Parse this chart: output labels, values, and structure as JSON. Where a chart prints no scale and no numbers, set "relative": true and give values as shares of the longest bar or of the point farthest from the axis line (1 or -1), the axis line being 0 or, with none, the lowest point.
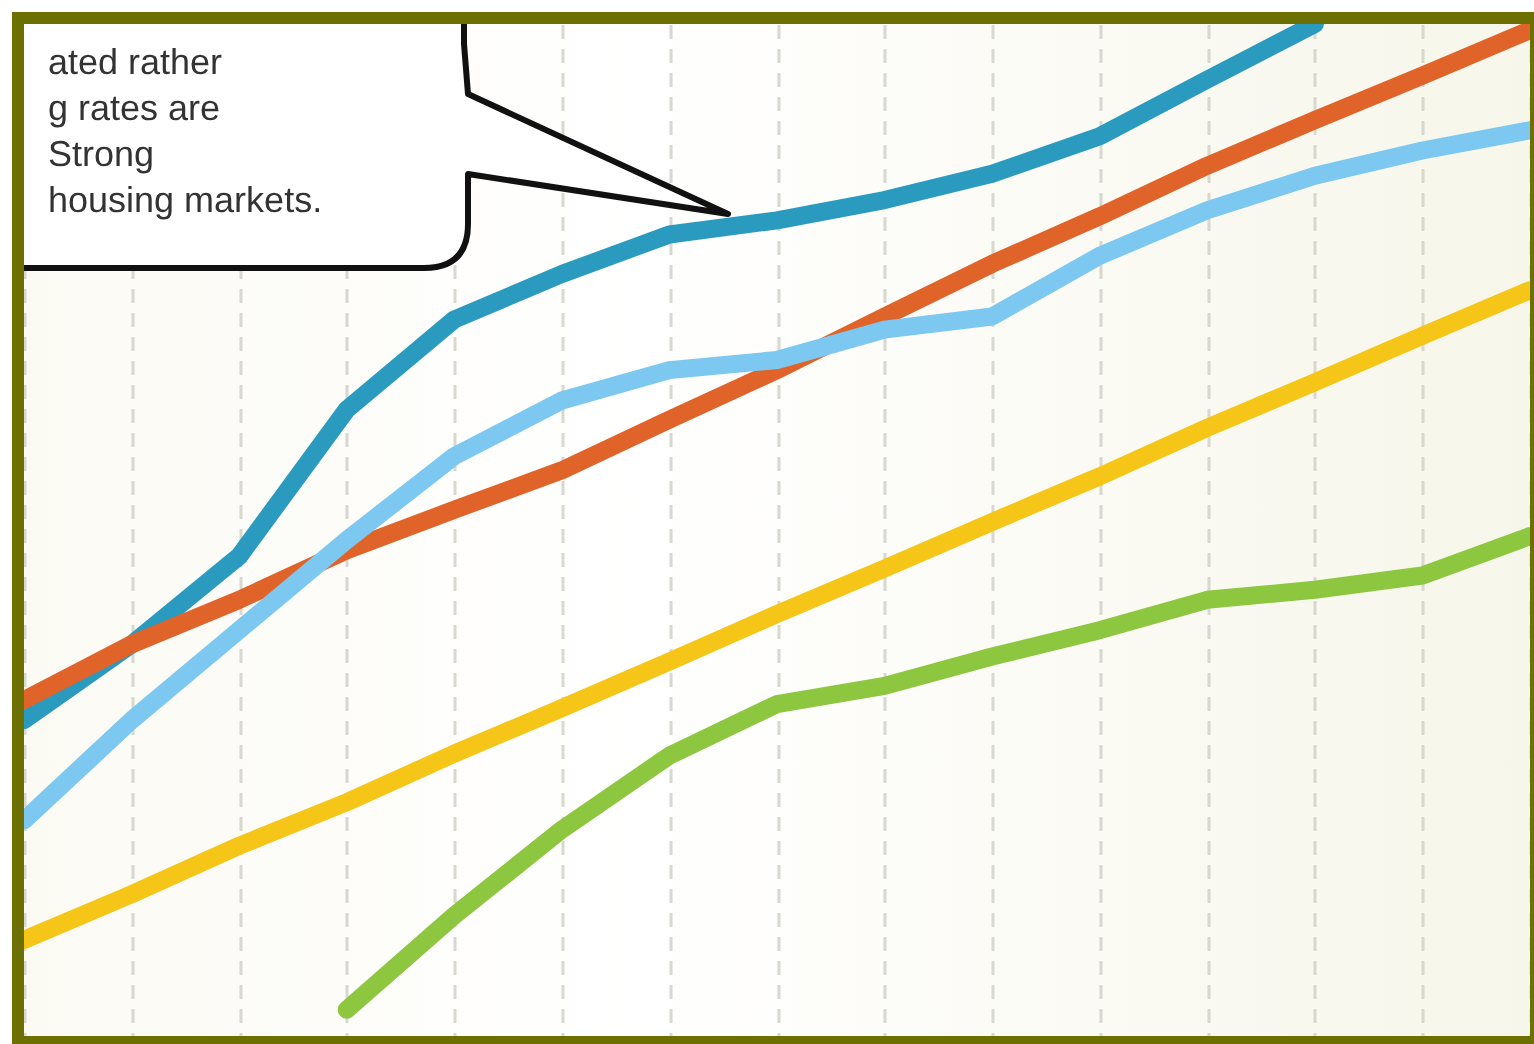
{
  "chart_data": {
    "type": "line",
    "relative": true,
    "grid": "x",
    "marker": "none",
    "line_style": "solid",
    "categories": [
      null,
      null,
      null,
      null,
      null,
      null,
      null,
      null,
      null,
      null,
      null,
      null,
      null,
      null,
      null
    ],
    "annotations": [
      "ated rather",
      "g rates are",
      "Strong",
      "housing markets."
    ],
    "series": [
      {
        "color": "#2a9bbf",
        "values": [
          0.312,
          0.387,
          0.474,
          0.619,
          0.708,
          0.753,
          0.792,
          0.806,
          0.826,
          0.852,
          0.889,
          0.945,
          1.0,
          null,
          null
        ]
      },
      {
        "color": "#e0632a",
        "values": [
          0.332,
          0.387,
          0.431,
          0.48,
          0.52,
          0.559,
          0.609,
          0.658,
          0.711,
          0.763,
          0.81,
          0.86,
          0.905,
          0.949,
          0.994
        ]
      },
      {
        "color": "#7cc8f0",
        "values": [
          0.213,
          0.312,
          0.401,
          0.49,
          0.573,
          0.628,
          0.658,
          0.668,
          0.698,
          0.711,
          0.771,
          0.816,
          0.85,
          0.875,
          0.895
        ]
      },
      {
        "color": "#f5c518",
        "values": [
          0.095,
          0.14,
          0.188,
          0.231,
          0.279,
          0.324,
          0.37,
          0.417,
          0.462,
          0.508,
          0.553,
          0.601,
          0.646,
          0.692,
          0.737
        ]
      },
      {
        "color": "#8dc63f",
        "values": [
          null,
          null,
          null,
          0.026,
          0.119,
          0.204,
          0.277,
          0.328,
          0.346,
          0.375,
          0.401,
          0.431,
          0.441,
          0.455,
          0.494
        ]
      }
    ]
  }
}
